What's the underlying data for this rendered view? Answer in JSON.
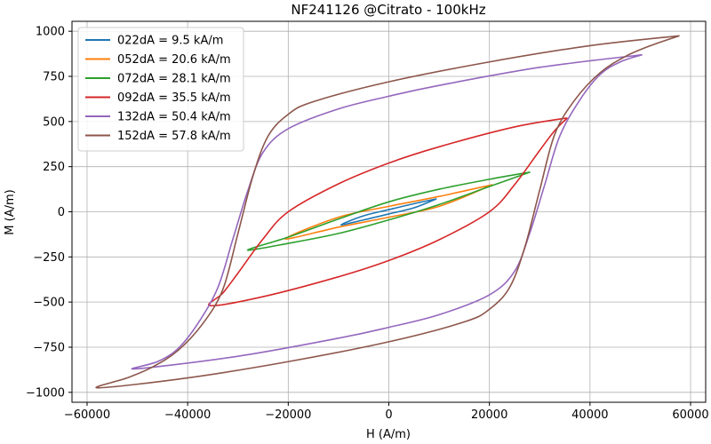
{
  "chart_data": {
    "type": "line",
    "title": "NF241126 @Citrato - 100kHz",
    "xlabel": "H (A/m)",
    "ylabel": "M (A/m)",
    "xlim": [
      -63000,
      63000
    ],
    "ylim": [
      -1055,
      1055
    ],
    "xticks": [
      -60000,
      -40000,
      -20000,
      0,
      20000,
      40000,
      60000
    ],
    "xtick_labels": [
      "−60000",
      "−40000",
      "−20000",
      "0",
      "20000",
      "40000",
      "60000"
    ],
    "yticks": [
      -1000,
      -750,
      -500,
      -250,
      0,
      250,
      500,
      750,
      1000
    ],
    "ytick_labels": [
      "−1000",
      "−750",
      "−500",
      "−250",
      "0",
      "250",
      "500",
      "750",
      "1000"
    ],
    "grid": true,
    "legend_position": "upper-left",
    "series": [
      {
        "name": "022dA = 9.5 kA/m",
        "color": "#1f77b4",
        "x": [
          9500,
          5000,
          0,
          -5000,
          -9500,
          -5000,
          0,
          5000,
          9500
        ],
        "y": [
          72,
          45,
          12,
          -22,
          -72,
          -45,
          -12,
          22,
          72
        ]
      },
      {
        "name": "052dA = 20.6 kA/m",
        "color": "#ff7f0e",
        "x": [
          20600,
          10000,
          0,
          -10000,
          -20600,
          -10000,
          0,
          10000,
          20600
        ],
        "y": [
          150,
          85,
          30,
          -30,
          -150,
          -85,
          -30,
          30,
          150
        ]
      },
      {
        "name": "072dA = 28.1 kA/m",
        "color": "#2ca02c",
        "x": [
          28100,
          20000,
          10000,
          0,
          -10000,
          -20000,
          -28100,
          -20000,
          -10000,
          0,
          10000,
          20000,
          28100
        ],
        "y": [
          220,
          180,
          125,
          55,
          -40,
          -140,
          -212,
          -175,
          -120,
          -45,
          40,
          140,
          220
        ],
        "note": ""
      },
      {
        "name": "092dA = 35.5 kA/m",
        "color": "#d62728",
        "x": [
          35500,
          25000,
          10000,
          0,
          -10000,
          -20000,
          -25000,
          -30000,
          -33000,
          -35500,
          -25000,
          -10000,
          0,
          10000,
          20000,
          25000,
          30000,
          33000,
          35500
        ],
        "y": [
          520,
          470,
          360,
          270,
          155,
          0,
          -150,
          -340,
          -450,
          -520,
          -470,
          -360,
          -270,
          -155,
          0,
          150,
          340,
          450,
          520
        ]
      },
      {
        "name": "132dA = 50.4 kA/m",
        "color": "#9467bd",
        "x": [
          50400,
          30000,
          10000,
          0,
          -10000,
          -20000,
          -25000,
          -28000,
          -31000,
          -34000,
          -38000,
          -42000,
          -46000,
          -50400,
          -30000,
          -10000,
          0,
          10000,
          20000,
          25000,
          28000,
          31000,
          34000,
          38000,
          42000,
          46000,
          50400
        ],
        "y": [
          870,
          800,
          700,
          640,
          570,
          460,
          330,
          120,
          -150,
          -420,
          -620,
          -760,
          -830,
          -870,
          -800,
          -700,
          -640,
          -570,
          -460,
          -330,
          -120,
          150,
          420,
          620,
          760,
          830,
          870
        ]
      },
      {
        "name": "152dA = 57.8 kA/m",
        "color": "#8c564b",
        "x": [
          57800,
          40000,
          20000,
          0,
          -15000,
          -20000,
          -24000,
          -27000,
          -30000,
          -33000,
          -37000,
          -42000,
          -47000,
          -52000,
          -57800,
          -40000,
          -20000,
          0,
          15000,
          20000,
          24000,
          27000,
          30000,
          33000,
          37000,
          42000,
          47000,
          52000,
          57800
        ],
        "y": [
          975,
          920,
          830,
          720,
          610,
          540,
          420,
          200,
          -120,
          -430,
          -620,
          -770,
          -860,
          -920,
          -975,
          -920,
          -830,
          -720,
          -610,
          -540,
          -420,
          -200,
          120,
          430,
          620,
          770,
          860,
          920,
          975
        ]
      }
    ]
  }
}
